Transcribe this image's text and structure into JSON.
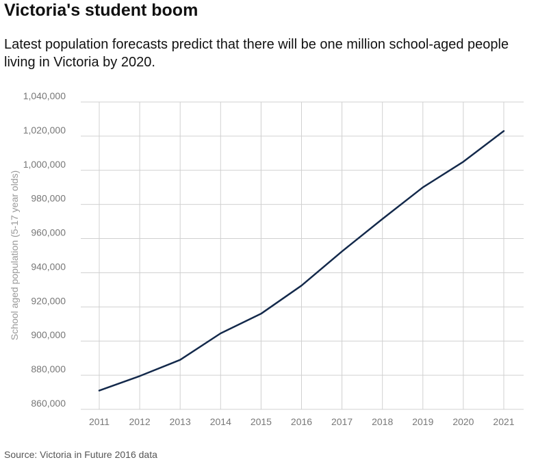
{
  "header": {
    "title": "Victoria's student boom",
    "subtitle": "Latest population forecasts predict that there will be one million school-aged people living in Victoria by 2020."
  },
  "footer": {
    "source": "Source: Victoria in Future 2016 data"
  },
  "colors": {
    "line": "#13294b",
    "grid": "#d0d0d0",
    "tick_text": "#777777",
    "axis_label_text": "#999999"
  },
  "chart_data": {
    "type": "line",
    "x": [
      2011,
      2012,
      2013,
      2014,
      2015,
      2016,
      2017,
      2018,
      2019,
      2020,
      2021
    ],
    "x_tick_labels": [
      "2011",
      "2012",
      "2013",
      "2014",
      "2015",
      "2016",
      "2017",
      "2018",
      "2019",
      "2020",
      "2021"
    ],
    "series": [
      {
        "values": [
          871000,
          879500,
          889000,
          904500,
          916000,
          932500,
          952500,
          971500,
          990000,
          1005000,
          1023000
        ]
      }
    ],
    "ylabel": "School aged population (5-17 year olds)",
    "xlabel": "",
    "ylim": [
      860000,
      1040000
    ],
    "y_ticks": [
      860000,
      880000,
      900000,
      920000,
      940000,
      960000,
      980000,
      1000000,
      1020000,
      1040000
    ],
    "y_tick_labels": [
      "860,000",
      "880,000",
      "900,000",
      "920,000",
      "940,000",
      "960,000",
      "980,000",
      "1,000,000",
      "1,020,000",
      "1,040,000"
    ],
    "grid": true,
    "legend": "none"
  }
}
